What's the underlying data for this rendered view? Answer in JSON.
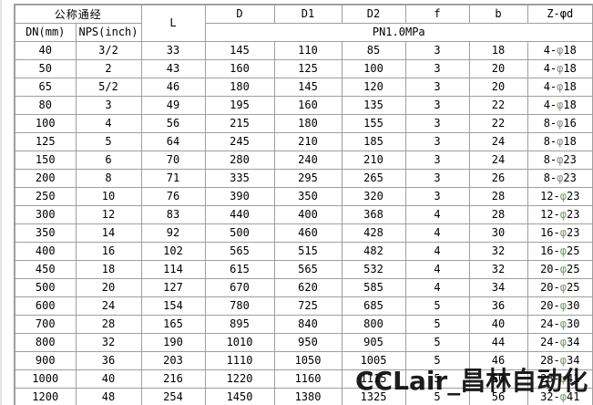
{
  "table": {
    "header": {
      "nominal_group": "公称通经",
      "dn": "DN(mm)",
      "nps": "NPS(inch)",
      "l": "L",
      "d": "D",
      "d1": "D1",
      "d2": "D2",
      "f": "f",
      "b": "b",
      "z_phi_d": "Z-φd",
      "pressure_class": "PN1.0MPa"
    },
    "columns": [
      "DN(mm)",
      "NPS(inch)",
      "L",
      "D",
      "D1",
      "D2",
      "f",
      "b",
      "Z-φd"
    ],
    "rows": [
      [
        "40",
        "3/2",
        "33",
        "145",
        "110",
        "85",
        "3",
        "18",
        "4-φ18"
      ],
      [
        "50",
        "2",
        "43",
        "160",
        "125",
        "100",
        "3",
        "20",
        "4-φ18"
      ],
      [
        "65",
        "5/2",
        "46",
        "180",
        "145",
        "120",
        "3",
        "20",
        "4-φ18"
      ],
      [
        "80",
        "3",
        "49",
        "195",
        "160",
        "135",
        "3",
        "22",
        "4-φ18"
      ],
      [
        "100",
        "4",
        "56",
        "215",
        "180",
        "155",
        "3",
        "22",
        "8-φ16"
      ],
      [
        "125",
        "5",
        "64",
        "245",
        "210",
        "185",
        "3",
        "24",
        "8-φ18"
      ],
      [
        "150",
        "6",
        "70",
        "280",
        "240",
        "210",
        "3",
        "24",
        "8-φ23"
      ],
      [
        "200",
        "8",
        "71",
        "335",
        "295",
        "265",
        "3",
        "26",
        "8-φ23"
      ],
      [
        "250",
        "10",
        "76",
        "390",
        "350",
        "320",
        "3",
        "28",
        "12-φ23"
      ],
      [
        "300",
        "12",
        "83",
        "440",
        "400",
        "368",
        "4",
        "28",
        "12-φ23"
      ],
      [
        "350",
        "14",
        "92",
        "500",
        "460",
        "428",
        "4",
        "30",
        "16-φ23"
      ],
      [
        "400",
        "16",
        "102",
        "565",
        "515",
        "482",
        "4",
        "32",
        "16-φ25"
      ],
      [
        "450",
        "18",
        "114",
        "615",
        "565",
        "532",
        "4",
        "32",
        "20-φ25"
      ],
      [
        "500",
        "20",
        "127",
        "670",
        "620",
        "585",
        "4",
        "34",
        "20-φ25"
      ],
      [
        "600",
        "24",
        "154",
        "780",
        "725",
        "685",
        "5",
        "36",
        "20-φ30"
      ],
      [
        "700",
        "28",
        "165",
        "895",
        "840",
        "800",
        "5",
        "40",
        "24-φ30"
      ],
      [
        "800",
        "32",
        "190",
        "1010",
        "950",
        "905",
        "5",
        "44",
        "24-φ34"
      ],
      [
        "900",
        "36",
        "203",
        "1110",
        "1050",
        "1005",
        "5",
        "46",
        "28-φ34"
      ],
      [
        "1000",
        "40",
        "216",
        "1220",
        "1160",
        "1115",
        "5",
        "50",
        "28-φ41"
      ],
      [
        "1200",
        "48",
        "254",
        "1450",
        "1380",
        "1325",
        "5",
        "56",
        "32-φ41"
      ]
    ]
  },
  "watermark": "CCLair_昌林自动化",
  "colors": {
    "grid": "#9f9f9f",
    "cell_background": "#ffffff",
    "text": "#000000",
    "phi_symbol": "#7f9478",
    "watermark_text": "#0a0a0a"
  }
}
